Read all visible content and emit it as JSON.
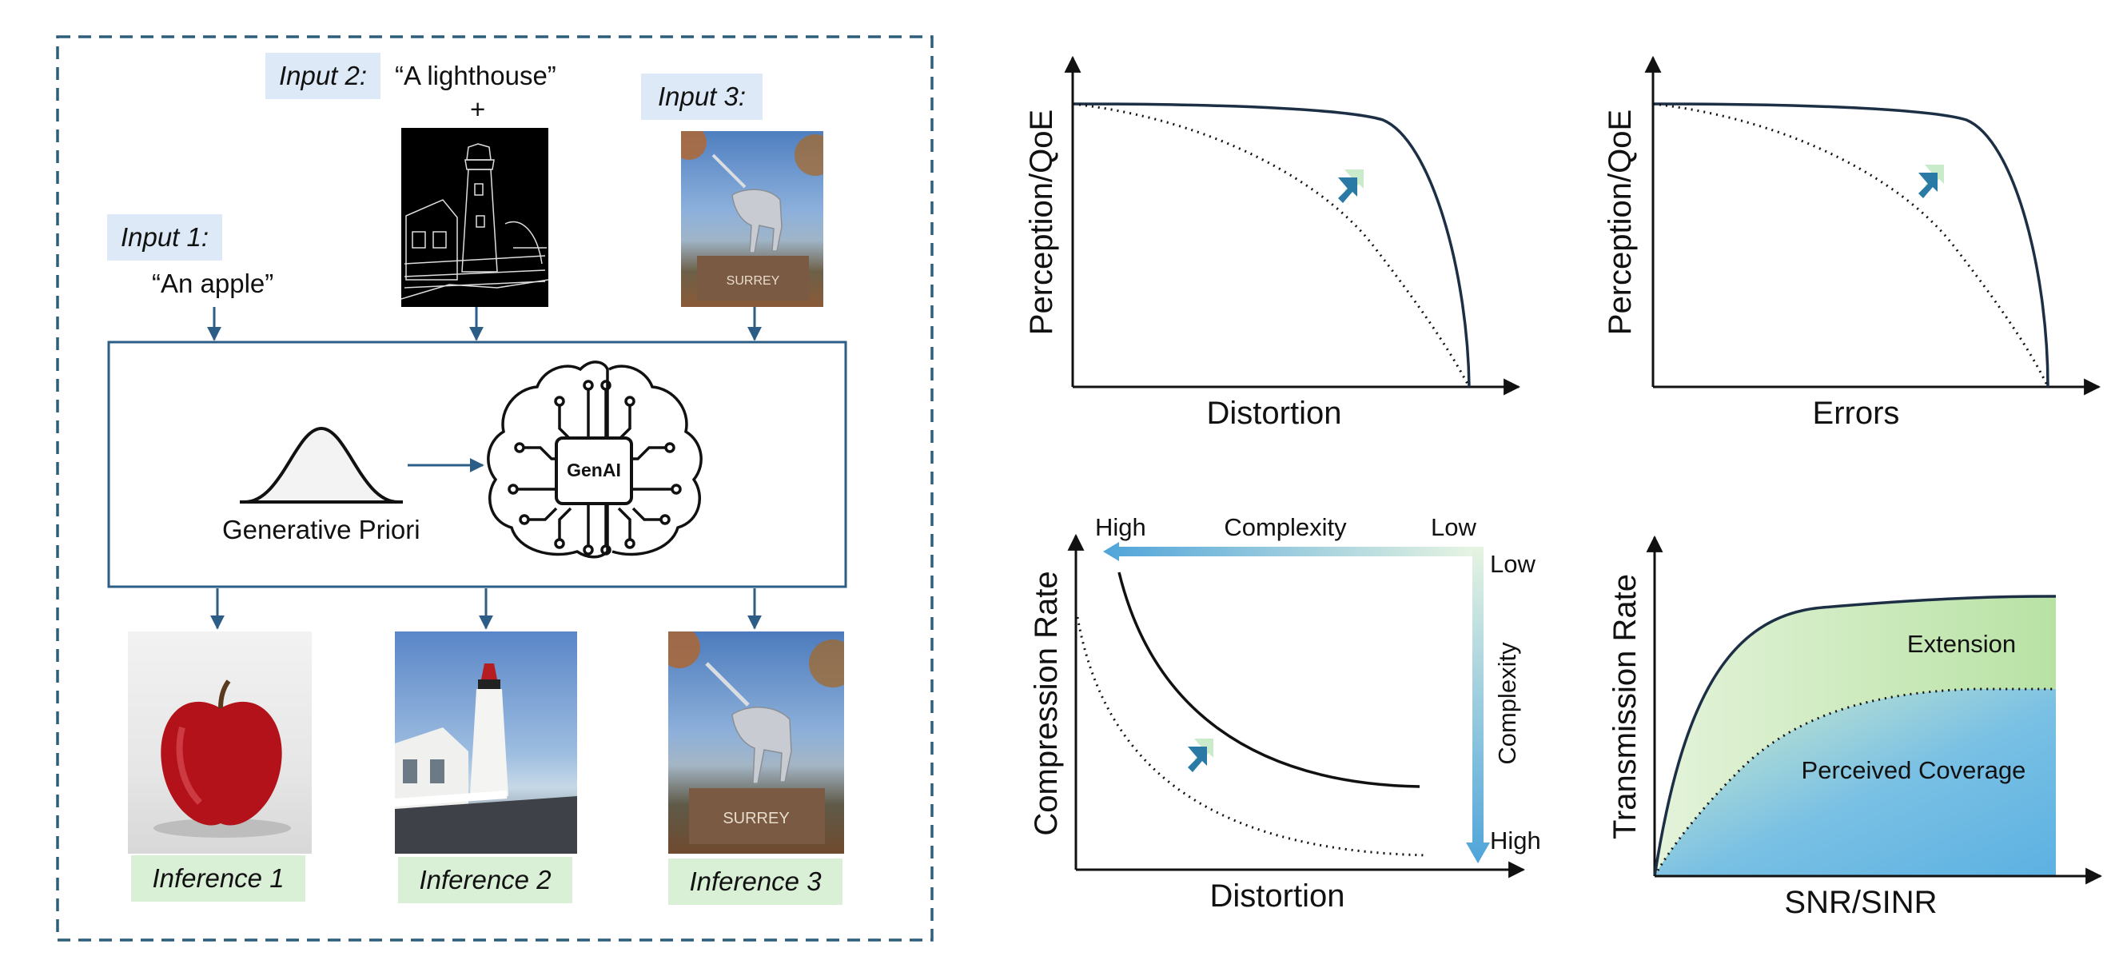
{
  "pipeline": {
    "inputs": [
      {
        "tag": "Input 1:",
        "text": "“An apple”"
      },
      {
        "tag": "Input 2:",
        "text": "“A lighthouse”",
        "plus": "+"
      },
      {
        "tag": "Input 3:"
      }
    ],
    "prior_label": "Generative Priori",
    "chip_label": "GenAI",
    "inferences": [
      "Inference 1",
      "Inference 2",
      "Inference 3"
    ],
    "statue_plaque": "SURREY"
  },
  "plots": {
    "p1": {
      "ylabel": "Perception/QoE",
      "xlabel": "Distortion"
    },
    "p2": {
      "ylabel": "Perception/QoE",
      "xlabel": "Errors"
    },
    "p3": {
      "ylabel": "Compression Rate",
      "xlabel": "Distortion",
      "h_complexity": "Complexity",
      "h_high": "High",
      "h_low": "Low",
      "v_complexity": "Complexity",
      "v_low": "Low",
      "v_high": "High"
    },
    "p4": {
      "ylabel": "Transmission Rate",
      "xlabel": "SNR/SINR",
      "region_upper": "Extension",
      "region_lower": "Perceived Coverage"
    }
  },
  "colors": {
    "frame_dash": "#2e5f7a",
    "flow_blue": "#2c5d86",
    "curve_navy": "#1c2f45",
    "input_tag_bg": "#dde9f6",
    "inference_tag_bg": "#d9f0d6",
    "grad_blue": "#5aa9dc",
    "grad_green": "#d8efc9"
  }
}
